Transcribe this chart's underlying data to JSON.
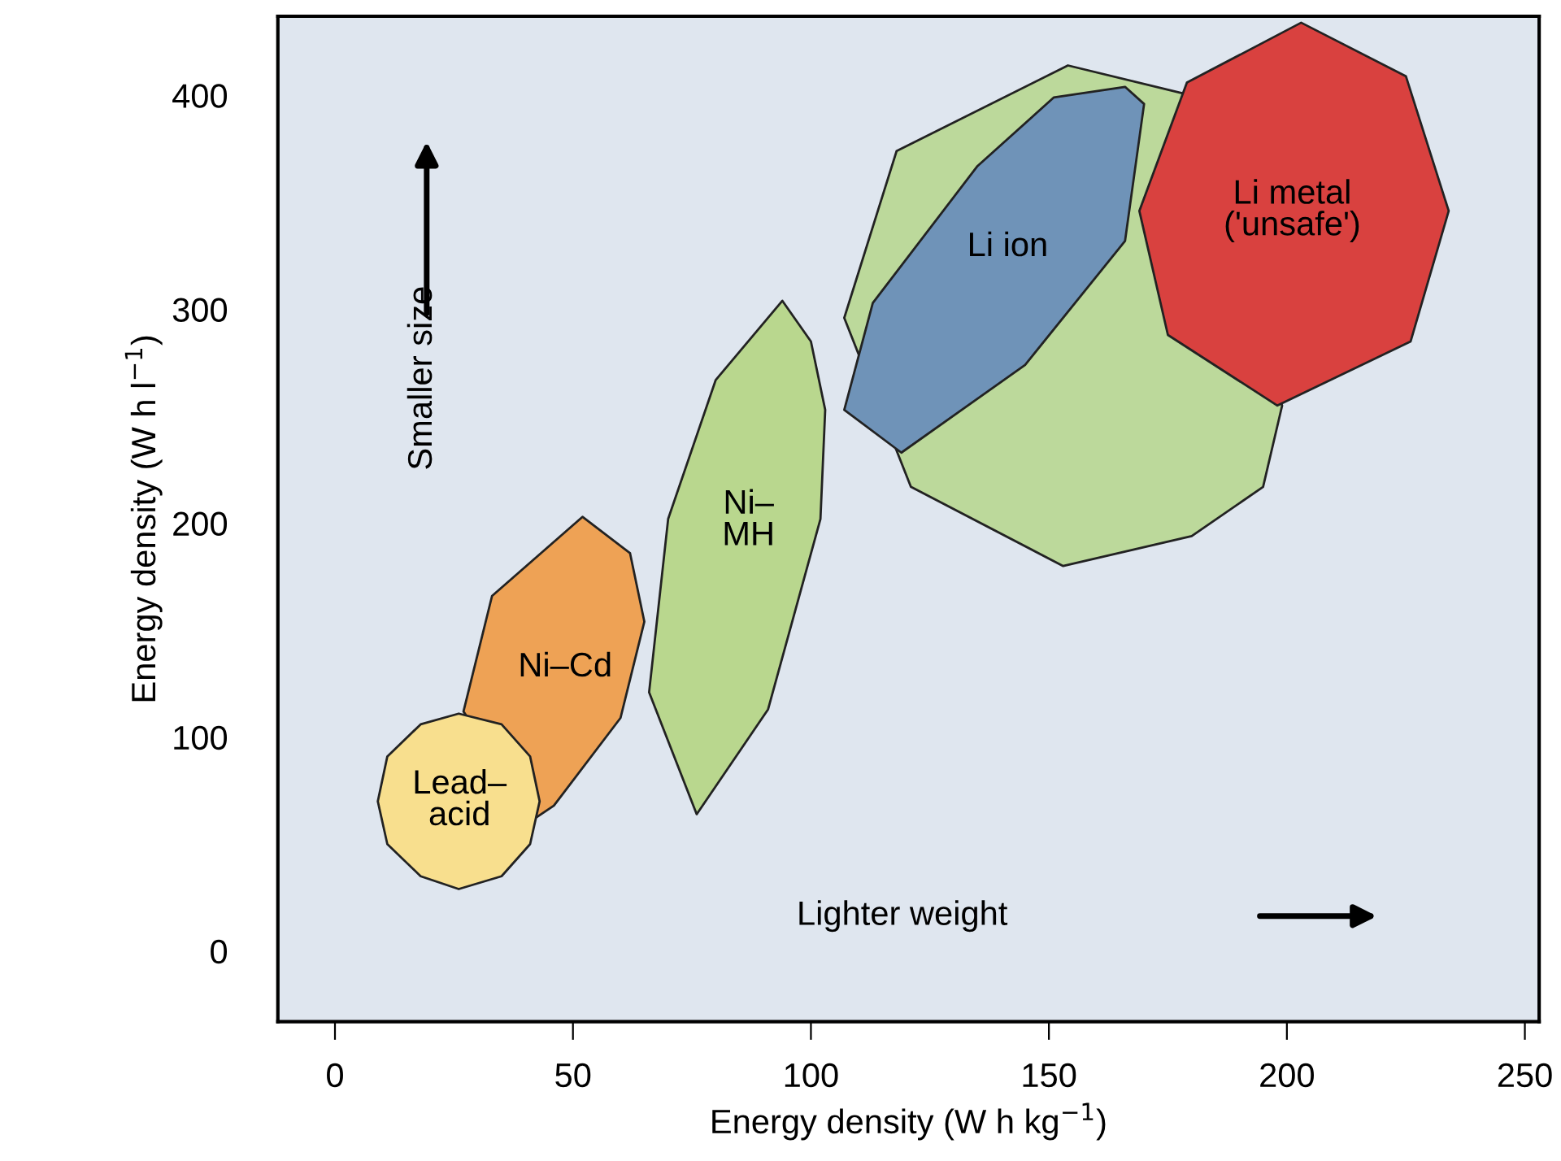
{
  "chart_data": {
    "type": "area",
    "xlabel": "Energy density (W h kg$^{−1}$)",
    "ylabel": "Energy density (W h l$^{−1}$)",
    "xlim": [
      -12,
      253
    ],
    "ylim": [
      -33,
      437
    ],
    "xticks": [
      0,
      50,
      100,
      150,
      200,
      250
    ],
    "yticks": [
      0,
      100,
      200,
      300,
      400
    ],
    "grid": false,
    "series": [
      {
        "name": "Ni–Cd",
        "color": "#eea255",
        "x": [
          52,
          62,
          65,
          60,
          46,
          42,
          27,
          33
        ],
        "values": [
          203,
          186,
          154,
          109,
          68,
          62,
          112,
          166
        ]
      },
      {
        "name": "Lead–\nacid",
        "color": "#f8df8e",
        "x": [
          43,
          41,
          35,
          26,
          18,
          11,
          9,
          11,
          18,
          26,
          35,
          41
        ],
        "values": [
          70,
          91,
          106,
          111,
          106,
          91,
          70,
          50,
          35,
          29,
          35,
          50
        ]
      },
      {
        "name": "Ni–\nMH",
        "color": "#b9d78e",
        "x": [
          94,
          100,
          103,
          102,
          91,
          76,
          66,
          70,
          80
        ],
        "values": [
          304,
          285,
          253,
          202,
          113,
          64,
          121,
          202,
          267
        ]
      },
      {
        "color": "#bcd99b",
        "x": [
          154,
          178,
          199,
          195,
          180,
          153,
          121,
          107,
          118
        ],
        "values": [
          414,
          401,
          255,
          217,
          194,
          180,
          217,
          296,
          374
        ]
      },
      {
        "name": "Li ion",
        "color": "#6f93b8",
        "x": [
          166,
          170,
          166,
          145,
          119,
          107,
          113,
          135,
          151
        ],
        "values": [
          404,
          396,
          332,
          274,
          233,
          253,
          303,
          367,
          399
        ]
      },
      {
        "name": "Li metal\n('unsafe')",
        "color": "#d9413f",
        "x": [
          203,
          225,
          234,
          226,
          198,
          175,
          169,
          179
        ],
        "values": [
          434,
          409,
          346,
          285,
          255,
          288,
          346,
          406
        ]
      }
    ],
    "annotations": [
      "Smaller size",
      "Lighter weight"
    ]
  }
}
